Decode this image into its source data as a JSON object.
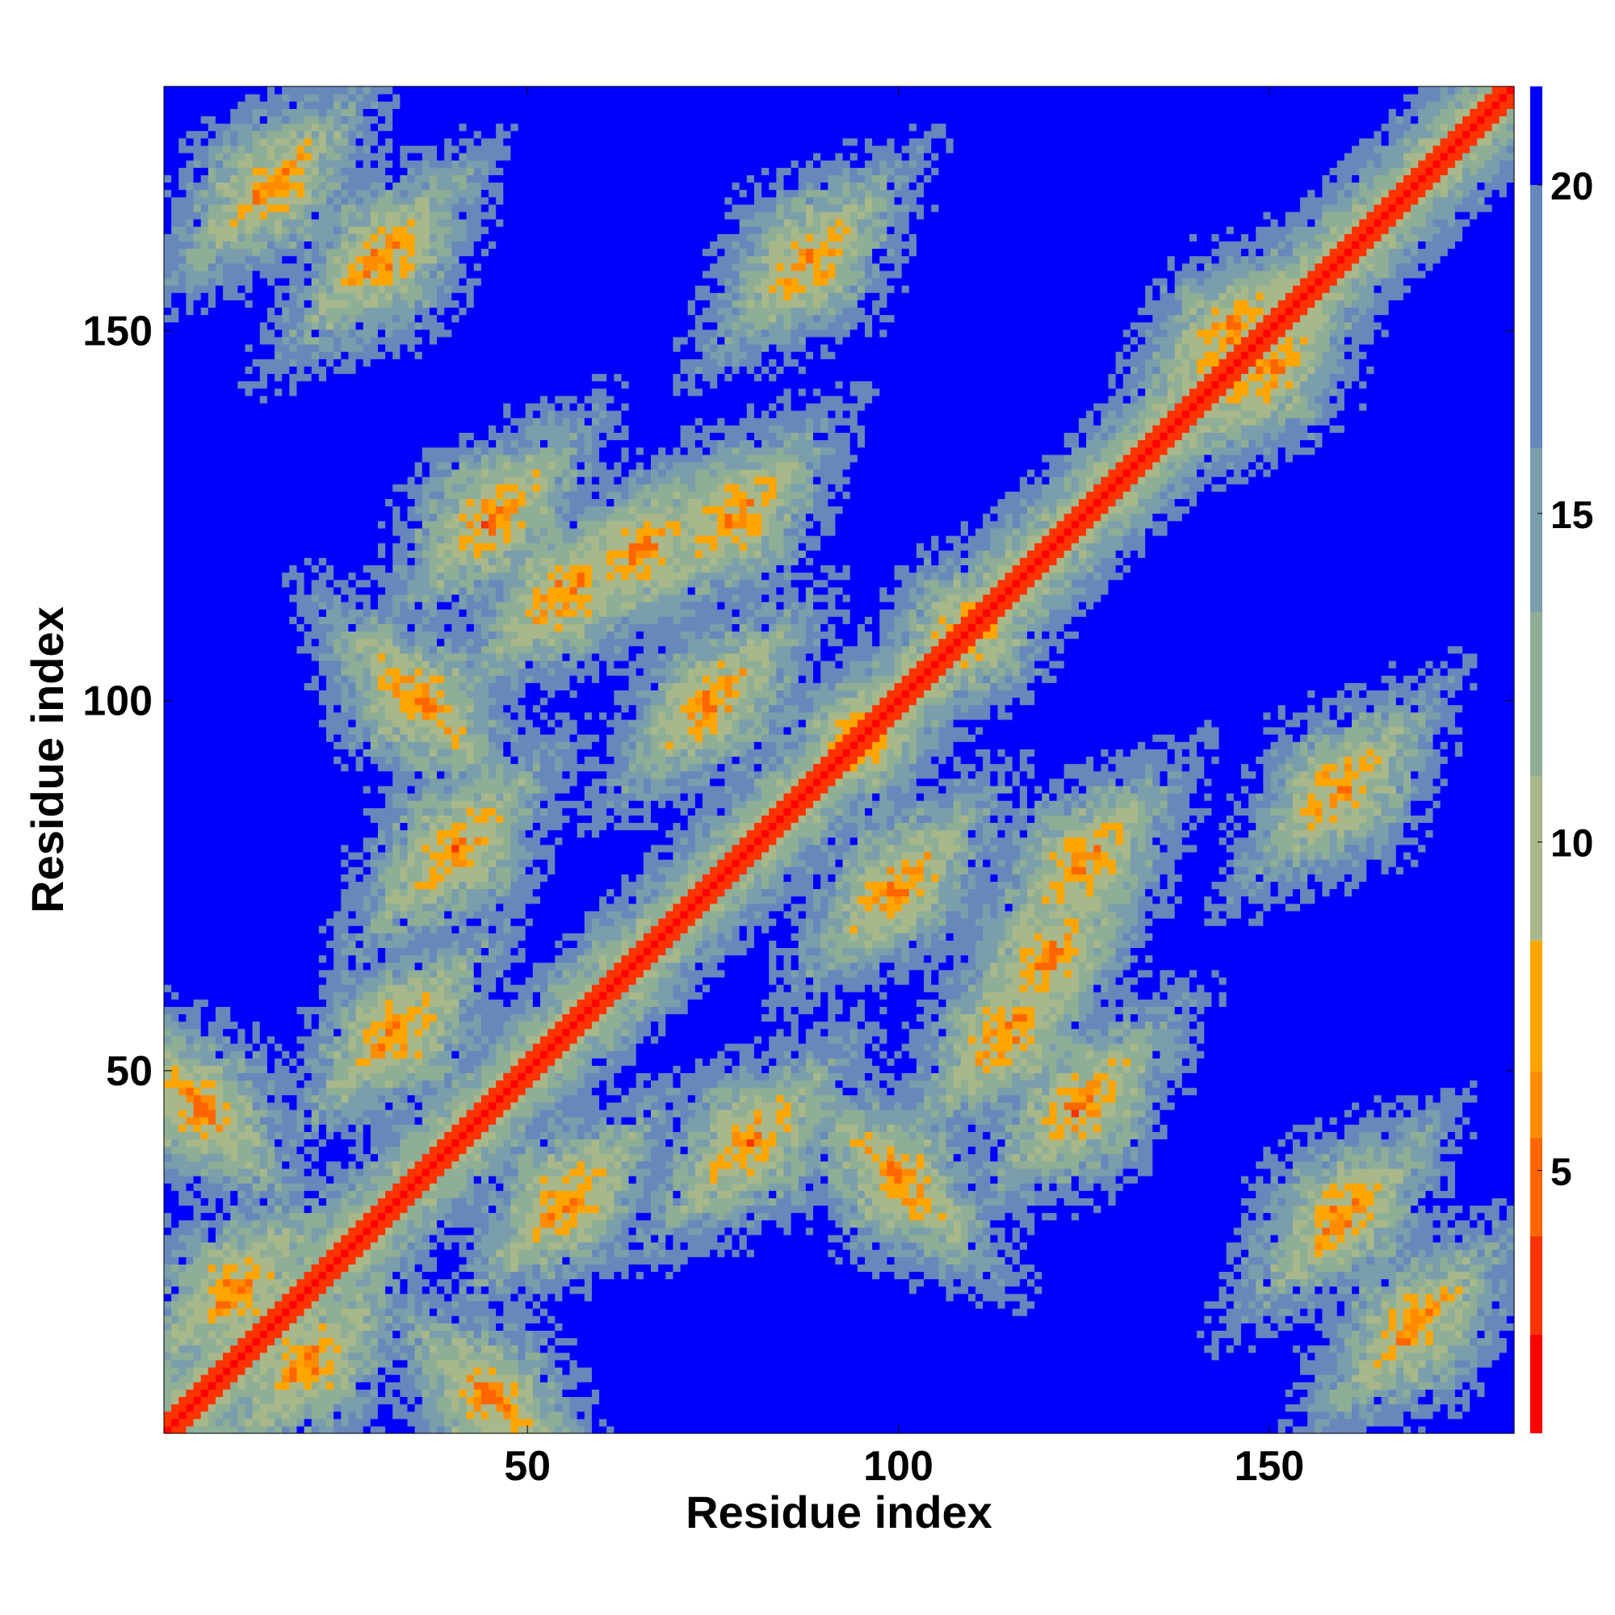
{
  "chart_data": {
    "type": "heatmap",
    "title": "",
    "xlabel": "Residue index",
    "ylabel": "Residue index",
    "xlim": [
      1,
      183
    ],
    "ylim": [
      1,
      183
    ],
    "n_residues": 183,
    "x_ticks": [
      50,
      100,
      150
    ],
    "y_ticks": [
      50,
      100,
      150
    ],
    "x_tick_labels": [
      "50",
      "100",
      "150"
    ],
    "y_tick_labels": [
      "50",
      "100",
      "150"
    ],
    "colorbar": {
      "range": [
        1,
        21.5
      ],
      "ticks": [
        5,
        10,
        15,
        20
      ],
      "tick_labels": [
        "5",
        "10",
        "15",
        "20"
      ],
      "levels": [
        {
          "max": 2.5,
          "color": "#ff0000"
        },
        {
          "max": 4.0,
          "color": "#ff3300"
        },
        {
          "max": 5.5,
          "color": "#ff6600"
        },
        {
          "max": 6.5,
          "color": "#ff8c00"
        },
        {
          "max": 8.5,
          "color": "#ffa500"
        },
        {
          "max": 11.0,
          "color": "#a8b88a"
        },
        {
          "max": 13.5,
          "color": "#8fae96"
        },
        {
          "max": 16.0,
          "color": "#7a9eab"
        },
        {
          "max": 20.0,
          "color": "#6688bb"
        },
        {
          "max": 99,
          "color": "#0000ff"
        }
      ]
    },
    "structure": {
      "diagonal_band": {
        "value_at_center": 1.5,
        "width_residues": 2.2
      },
      "contacts": [
        {
          "i": 10,
          "j": 20,
          "k": 3
        },
        {
          "i": 5,
          "j": 45,
          "k": -1
        },
        {
          "i": 15,
          "j": 170,
          "k": 1
        },
        {
          "i": 30,
          "j": 160,
          "k": 1
        },
        {
          "i": 35,
          "j": 100,
          "k": -1
        },
        {
          "i": 32,
          "j": 55,
          "k": 1
        },
        {
          "i": 55,
          "j": 30,
          "k": 1
        },
        {
          "i": 45,
          "j": 125,
          "k": 1
        },
        {
          "i": 40,
          "j": 80,
          "k": 1
        },
        {
          "i": 55,
          "j": 115,
          "k": 1
        },
        {
          "i": 65,
          "j": 120,
          "k": 1
        },
        {
          "i": 75,
          "j": 100,
          "k": 1
        },
        {
          "i": 78,
          "j": 125,
          "k": 1
        },
        {
          "i": 88,
          "j": 160,
          "k": 1
        },
        {
          "i": 95,
          "j": 95,
          "k": 1
        },
        {
          "i": 100,
          "j": 25,
          "k": 1
        },
        {
          "i": 100,
          "j": 80,
          "k": 1
        },
        {
          "i": 110,
          "j": 110,
          "k": 1
        },
        {
          "i": 120,
          "j": 60,
          "k": 1
        },
        {
          "i": 125,
          "j": 85,
          "k": 1
        },
        {
          "i": 130,
          "j": 40,
          "k": 1
        },
        {
          "i": 145,
          "j": 150,
          "k": 1
        },
        {
          "i": 150,
          "j": 140,
          "k": 1
        },
        {
          "i": 155,
          "j": 45,
          "k": 1
        },
        {
          "i": 165,
          "j": 20,
          "k": -1
        },
        {
          "i": 170,
          "j": 35,
          "k": 1
        }
      ]
    }
  }
}
